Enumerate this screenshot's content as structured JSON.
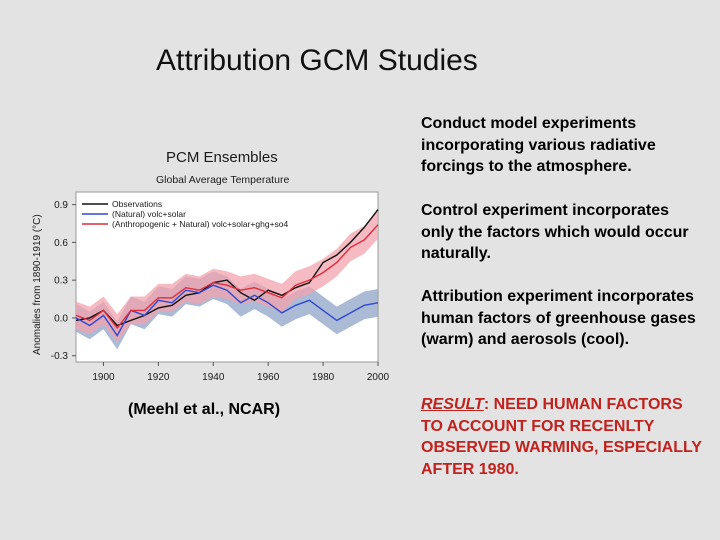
{
  "slide": {
    "title": "Attribution GCM Studies",
    "credit": "(Meehl et al., NCAR)"
  },
  "bullets": [
    {
      "text": "Conduct model experiments incorporating various radiative forcings to the atmosphere."
    },
    {
      "text": "Control experiment incorporates only the factors which would occur naturally."
    },
    {
      "text": "Attribution experiment incorporates human factors of greenhouse gases (warm) and aerosols (cool)."
    }
  ],
  "result": {
    "lead": "RESULT",
    "text": ": NEED HUMAN FACTORS TO ACCOUNT FOR RECENLTY OBSERVED WARMING, ESPECIALLY AFTER 1980."
  },
  "colors": {
    "observations": "#111111",
    "natural": "#2f49d1",
    "natural_band": "#8fa3c7",
    "anthro": "#e02c3c",
    "anthro_band": "#f3a3ad",
    "result_text": "#c0221d"
  },
  "chart_data": {
    "type": "line",
    "title": "PCM Ensembles",
    "subtitle": "Global Average Temperature",
    "ylabel": "Anomalies from 1890-1919 (°C)",
    "xlabel": "",
    "xlim": [
      1890,
      2000
    ],
    "ylim": [
      -0.35,
      1.0
    ],
    "xticks": [
      1900,
      1920,
      1940,
      1960,
      1980,
      2000
    ],
    "yticks": [
      -0.3,
      0.0,
      0.3,
      0.6,
      0.9
    ],
    "ytick_labels": [
      "-0.3",
      "0.0",
      "0.3",
      "0.6",
      "0.9"
    ],
    "grid": false,
    "legend_position": "top-left",
    "x": [
      1890,
      1895,
      1900,
      1905,
      1910,
      1915,
      1920,
      1925,
      1930,
      1935,
      1940,
      1945,
      1950,
      1955,
      1960,
      1965,
      1970,
      1975,
      1980,
      1985,
      1990,
      1995,
      2000
    ],
    "series": [
      {
        "name": "Observations",
        "values": [
          -0.02,
          0.0,
          0.06,
          -0.06,
          -0.02,
          0.02,
          0.08,
          0.1,
          0.18,
          0.2,
          0.28,
          0.3,
          0.2,
          0.14,
          0.22,
          0.18,
          0.24,
          0.28,
          0.44,
          0.5,
          0.6,
          0.72,
          0.86
        ]
      },
      {
        "name": "(Natural) volc+solar",
        "values": [
          0.0,
          -0.06,
          0.02,
          -0.14,
          0.06,
          0.02,
          0.14,
          0.12,
          0.22,
          0.2,
          0.26,
          0.22,
          0.12,
          0.18,
          0.12,
          0.04,
          0.1,
          0.14,
          0.06,
          -0.02,
          0.04,
          0.1,
          0.12
        ]
      },
      {
        "name": "(Anthropogenic + Natural) volc+solar+ghg+so4",
        "values": [
          0.02,
          -0.02,
          0.06,
          -0.08,
          0.06,
          0.06,
          0.16,
          0.16,
          0.24,
          0.22,
          0.28,
          0.26,
          0.22,
          0.24,
          0.2,
          0.16,
          0.26,
          0.3,
          0.36,
          0.44,
          0.56,
          0.62,
          0.74
        ]
      }
    ]
  }
}
